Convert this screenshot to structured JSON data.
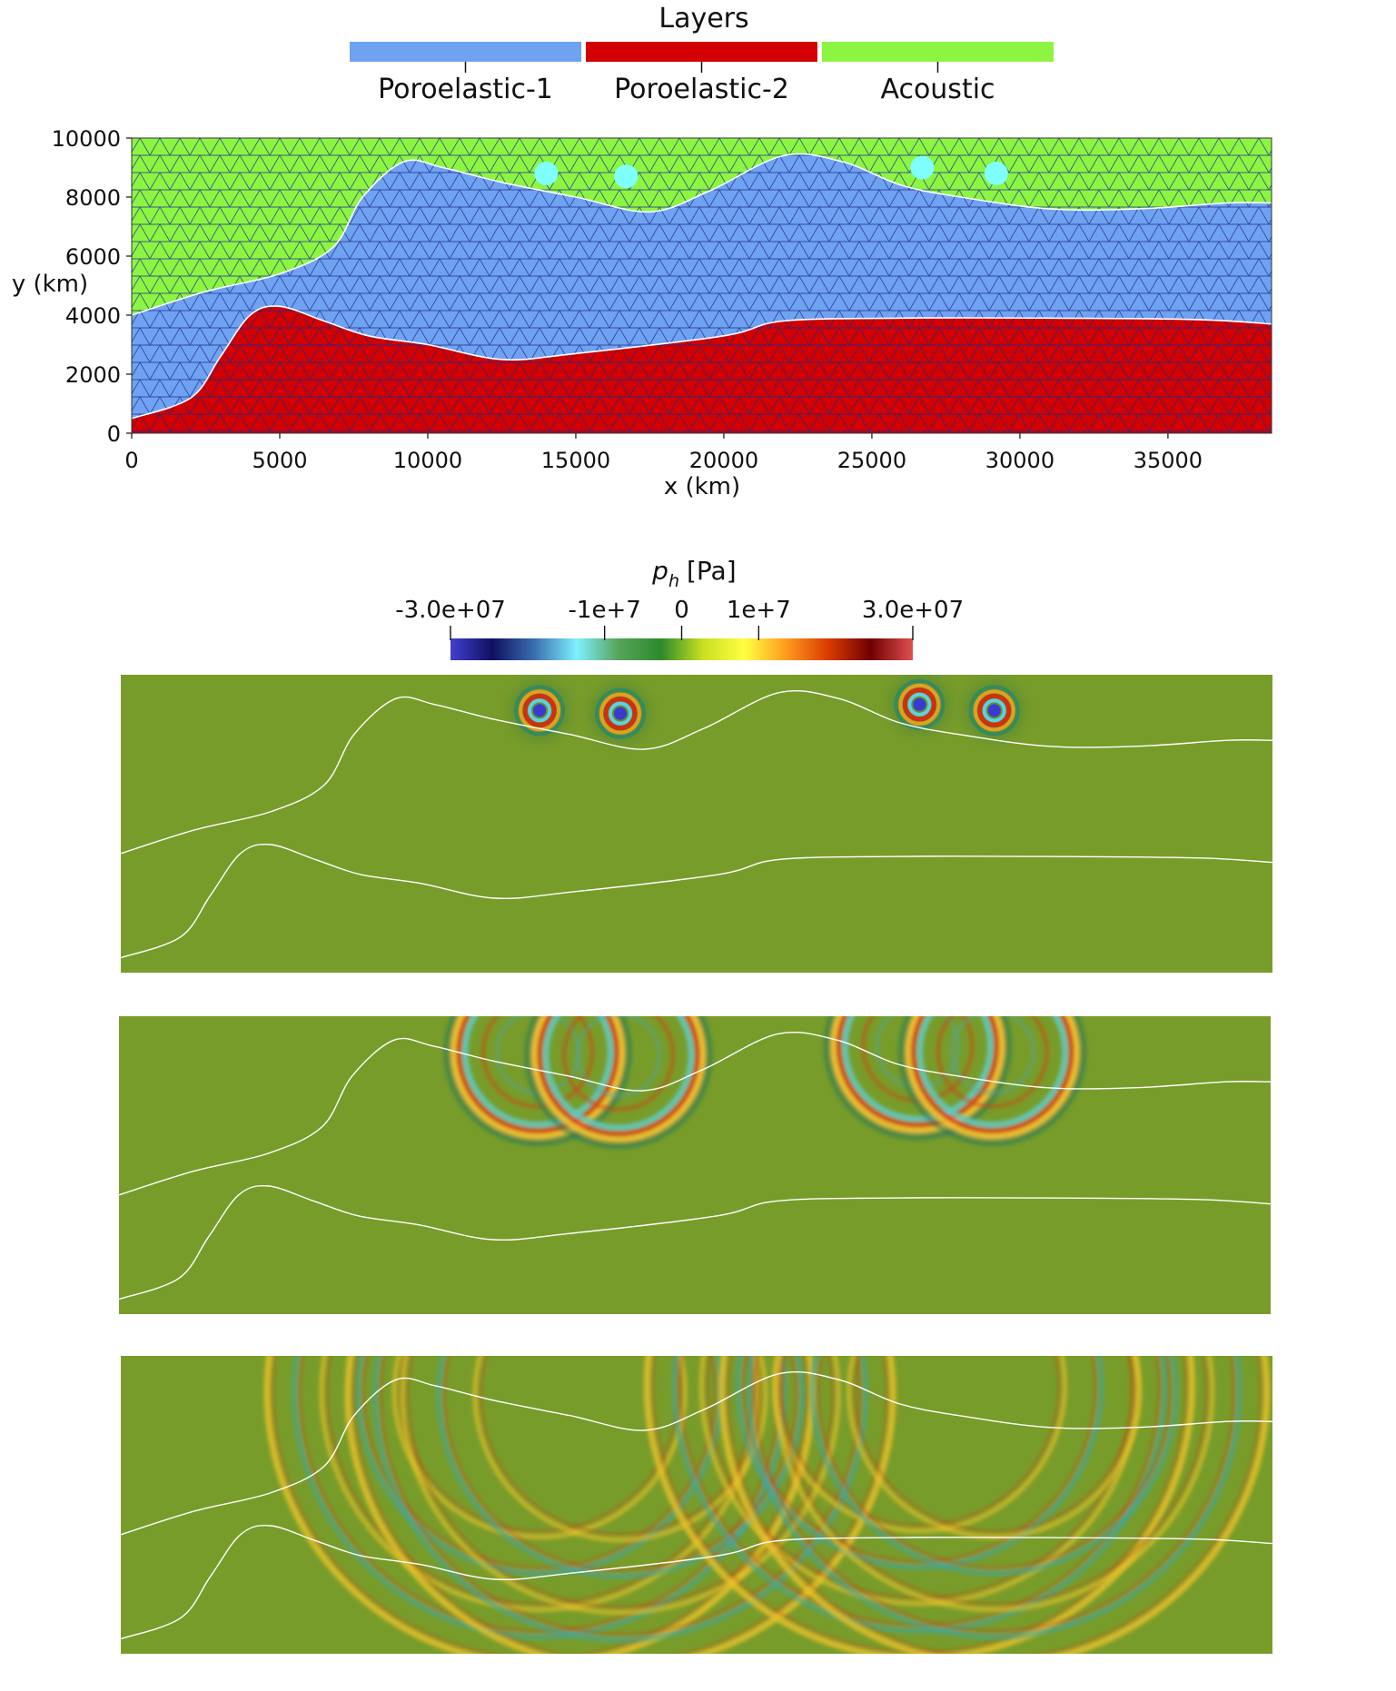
{
  "layers_legend": {
    "title": "Layers",
    "items": [
      {
        "label": "Poroelastic-1",
        "color": "#6fa2f0"
      },
      {
        "label": "Poroelastic-2",
        "color": "#d20000"
      },
      {
        "label": "Acoustic",
        "color": "#8cf542"
      }
    ]
  },
  "mesh_plot": {
    "xlabel": "x (km)",
    "ylabel": "y (km)",
    "xticks": [
      "0",
      "5000",
      "10000",
      "15000",
      "20000",
      "25000",
      "30000",
      "35000"
    ],
    "yticks": [
      "0",
      "2000",
      "4000",
      "6000",
      "8000",
      "10000"
    ],
    "xlim": [
      0,
      38500
    ],
    "ylim": [
      0,
      10000
    ],
    "sources_color": "#7fffff",
    "interface_color": "#ffffff",
    "mesh_color": "#1a2a8c"
  },
  "colorbar": {
    "label_main": "p",
    "label_sub": "h",
    "label_unit": "[Pa]",
    "min": -30000000,
    "max": 30000000,
    "ticks": [
      {
        "label": "-3.0e+07",
        "value": -30000000
      },
      {
        "label": "-1e+7",
        "value": -10000000
      },
      {
        "label": "0",
        "value": 0
      },
      {
        "label": "1e+7",
        "value": 10000000
      },
      {
        "label": "3.0e+07",
        "value": 30000000
      }
    ],
    "colormap": [
      "#4040d0",
      "#101060",
      "#3b6fb0",
      "#7ff0ff",
      "#56a35a",
      "#2c8a2c",
      "#c7e020",
      "#ffff40",
      "#ff9a1f",
      "#d93a00",
      "#700000",
      "#e05050"
    ]
  },
  "snapshots_background": "#789c2a",
  "chart_data": {
    "type": "scatter",
    "series": [
      {
        "values": [
          [
            0,
            4000
          ],
          [
            2500,
            4800
          ],
          [
            5000,
            5400
          ],
          [
            6800,
            6300
          ],
          [
            7800,
            8000
          ],
          [
            9200,
            9200
          ],
          [
            10500,
            9000
          ],
          [
            12500,
            8500
          ],
          [
            15000,
            8000
          ],
          [
            17500,
            7500
          ],
          [
            19500,
            8200
          ],
          [
            22000,
            9400
          ],
          [
            24000,
            9200
          ],
          [
            26000,
            8400
          ],
          [
            28000,
            8000
          ],
          [
            31000,
            7600
          ],
          [
            34000,
            7600
          ],
          [
            37000,
            7800
          ],
          [
            38500,
            7800
          ]
        ]
      },
      {
        "values": [
          [
            0,
            500
          ],
          [
            2000,
            1200
          ],
          [
            3000,
            2600
          ],
          [
            4000,
            4000
          ],
          [
            5000,
            4300
          ],
          [
            6500,
            3800
          ],
          [
            8000,
            3300
          ],
          [
            10000,
            3000
          ],
          [
            12500,
            2500
          ],
          [
            15000,
            2700
          ],
          [
            20000,
            3300
          ],
          [
            22000,
            3800
          ],
          [
            26000,
            3900
          ],
          [
            31000,
            3900
          ],
          [
            36000,
            3850
          ],
          [
            38500,
            3700
          ]
        ]
      },
      {
        "values": [
          [
            14000,
            8800
          ],
          [
            16700,
            8700
          ],
          [
            26700,
            9000
          ],
          [
            29200,
            8800
          ]
        ]
      }
    ]
  }
}
